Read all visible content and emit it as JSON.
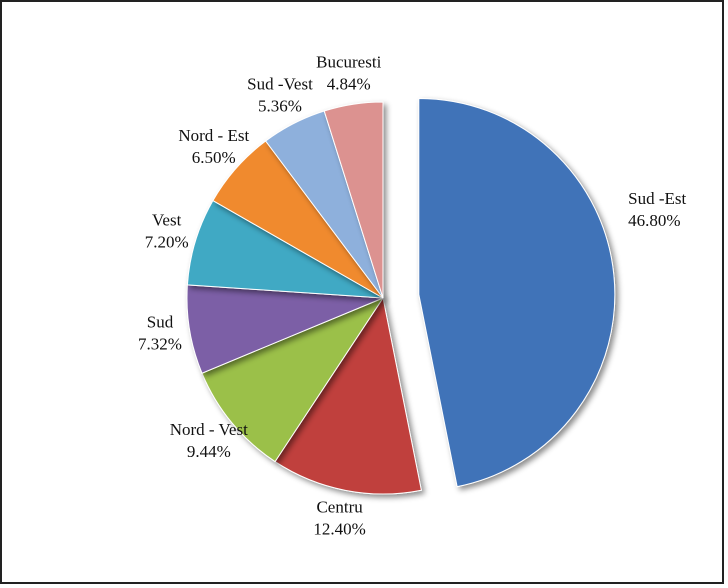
{
  "chart_data": {
    "type": "pie",
    "categories": [
      "Sud -Est",
      "Centru",
      "Nord - Vest",
      "Sud",
      "Vest",
      "Nord - Est",
      "Sud -Vest",
      "Bucuresti"
    ],
    "values": [
      46.8,
      12.4,
      9.44,
      7.32,
      7.2,
      6.5,
      5.36,
      4.84
    ],
    "value_labels": [
      "46.80%",
      "12.40%",
      "9.44%",
      "7.32%",
      "7.20%",
      "6.50%",
      "5.36%",
      "4.84%"
    ],
    "colors": [
      "#3f73b8",
      "#c0403c",
      "#9bc04a",
      "#7c5ea6",
      "#3fa9c4",
      "#f08a2e",
      "#8eb0dc",
      "#dc9290"
    ]
  }
}
